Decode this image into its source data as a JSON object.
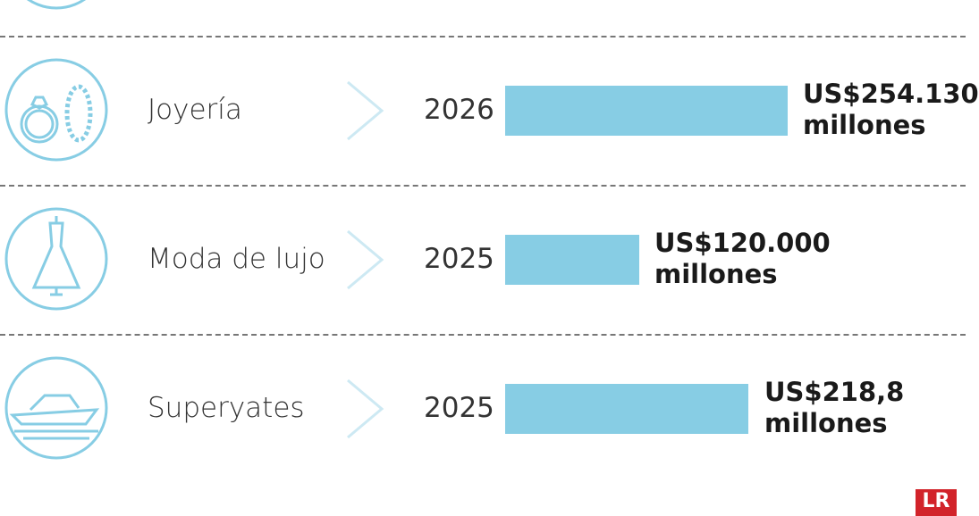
{
  "rows": [
    {
      "label": "Joyería",
      "year": "2026",
      "value": "US$254.130 millones"
    },
    {
      "label": "Moda de lujo",
      "year": "2025",
      "value": "US$120.000 millones"
    },
    {
      "label": "Superyates",
      "year": "2025",
      "value": "US$218,8 millones"
    }
  ],
  "logo": "LR"
}
